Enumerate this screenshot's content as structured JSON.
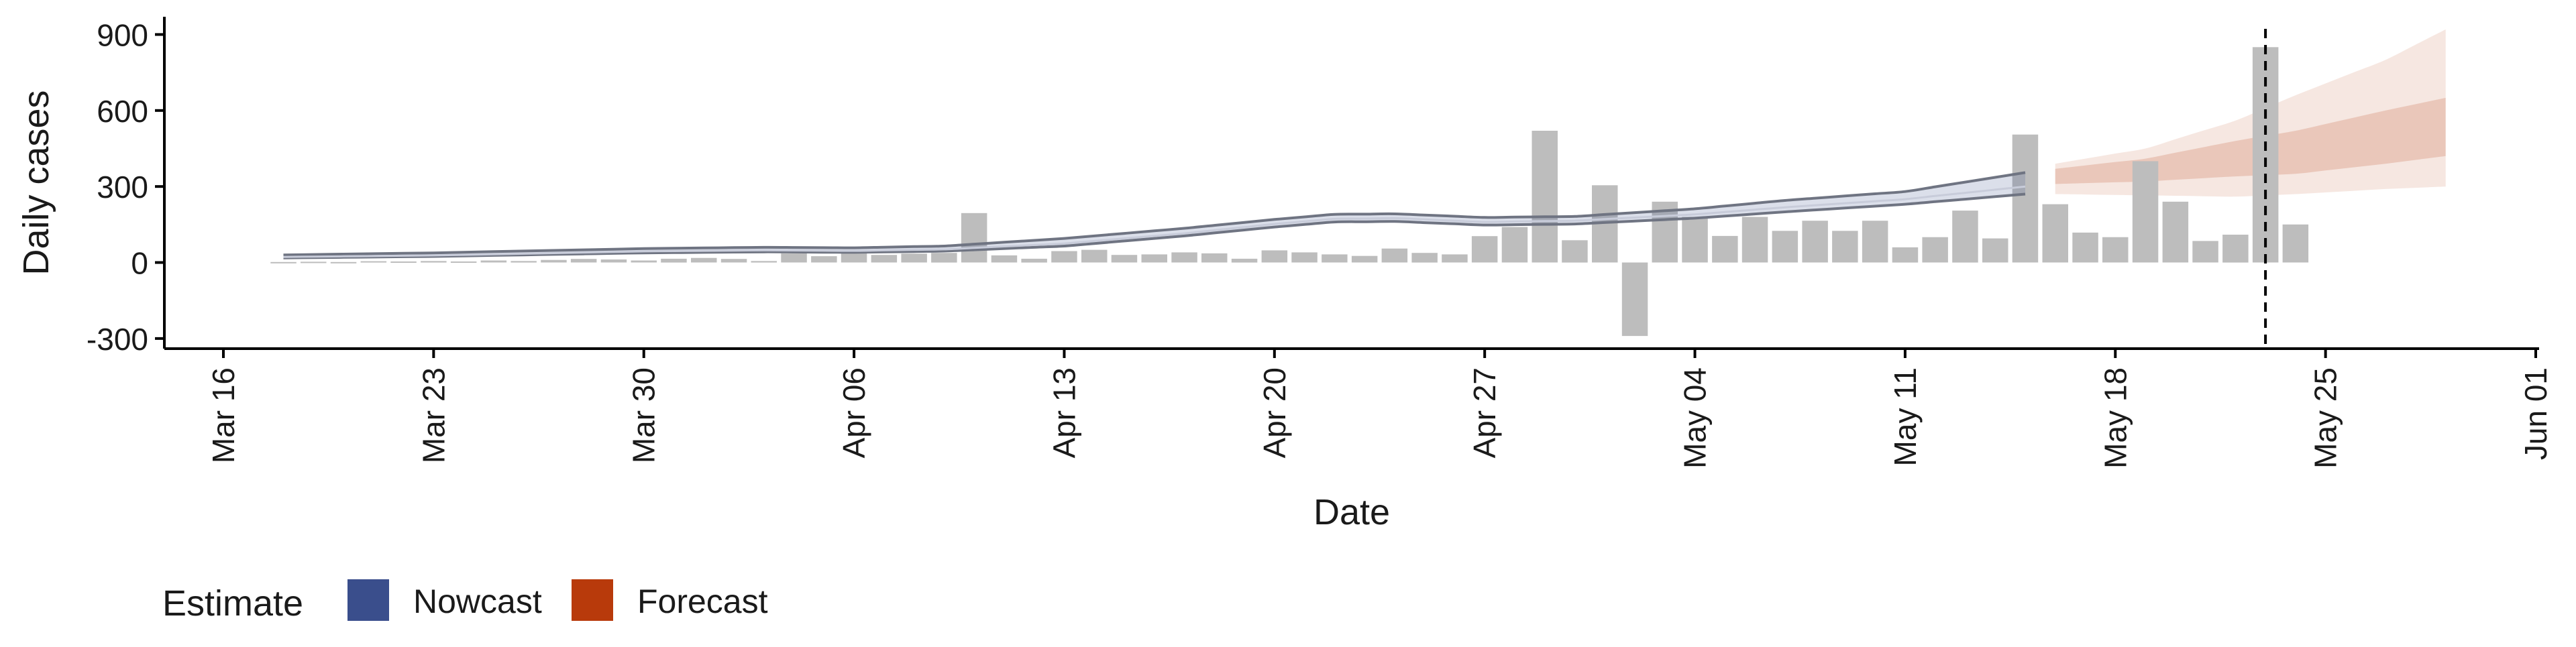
{
  "chart_data": {
    "type": "bar",
    "xlabel": "Date",
    "ylabel": "Daily cases",
    "x_tick_labels": [
      "Mar 16",
      "Mar 23",
      "Mar 30",
      "Apr 06",
      "Apr 13",
      "Apr 20",
      "Apr 27",
      "May 04",
      "May 11",
      "May 18",
      "May 25",
      "Jun 01"
    ],
    "y_tick_labels": [
      "-300",
      "0",
      "300",
      "600",
      "900"
    ],
    "y_ticks": [
      -300,
      0,
      300,
      600,
      900
    ],
    "ylim": [
      -340,
      970
    ],
    "xlim": [
      "2020-03-16",
      "2020-06-01"
    ],
    "grid": false,
    "legend": {
      "position": "bottom-left",
      "title": "Estimate",
      "items": [
        {
          "label": "Nowcast",
          "color": "#3a4e8c"
        },
        {
          "label": "Forecast",
          "color": "#b83a0b"
        }
      ]
    },
    "bars": {
      "color": "#bdbdbd",
      "start_date": "2020-03-18",
      "values": [
        2,
        3,
        2,
        5,
        4,
        6,
        4,
        8,
        6,
        10,
        14,
        12,
        8,
        15,
        18,
        14,
        6,
        36,
        25,
        45,
        30,
        35,
        38,
        195,
        28,
        15,
        45,
        50,
        30,
        32,
        40,
        36,
        15,
        48,
        40,
        32,
        26,
        55,
        38,
        32,
        104,
        140,
        520,
        88,
        305,
        -290,
        240,
        180,
        105,
        180,
        125,
        165,
        125,
        165,
        60,
        100,
        205,
        95,
        505,
        230,
        118,
        100,
        400,
        240,
        85,
        110,
        850,
        150
      ]
    },
    "nowcast": {
      "color": "#3a4e8c",
      "start_date": "2020-03-18",
      "end_date": "2020-05-15",
      "knots": [
        {
          "date": "2020-03-18",
          "lower": 18,
          "median": 22,
          "upper": 30
        },
        {
          "date": "2020-03-23",
          "lower": 24,
          "median": 28,
          "upper": 38
        },
        {
          "date": "2020-03-30",
          "lower": 38,
          "median": 44,
          "upper": 55
        },
        {
          "date": "2020-04-03",
          "lower": 42,
          "median": 48,
          "upper": 60
        },
        {
          "date": "2020-04-06",
          "lower": 40,
          "median": 46,
          "upper": 58
        },
        {
          "date": "2020-04-09",
          "lower": 45,
          "median": 52,
          "upper": 65
        },
        {
          "date": "2020-04-13",
          "lower": 65,
          "median": 75,
          "upper": 95
        },
        {
          "date": "2020-04-17",
          "lower": 105,
          "median": 115,
          "upper": 135
        },
        {
          "date": "2020-04-20",
          "lower": 140,
          "median": 152,
          "upper": 170
        },
        {
          "date": "2020-04-22",
          "lower": 160,
          "median": 172,
          "upper": 190
        },
        {
          "date": "2020-04-24",
          "lower": 162,
          "median": 175,
          "upper": 192
        },
        {
          "date": "2020-04-27",
          "lower": 148,
          "median": 160,
          "upper": 178
        },
        {
          "date": "2020-04-30",
          "lower": 152,
          "median": 165,
          "upper": 182
        },
        {
          "date": "2020-05-04",
          "lower": 175,
          "median": 190,
          "upper": 212
        },
        {
          "date": "2020-05-07",
          "lower": 200,
          "median": 218,
          "upper": 245
        },
        {
          "date": "2020-05-11",
          "lower": 230,
          "median": 250,
          "upper": 280
        },
        {
          "date": "2020-05-15",
          "lower": 270,
          "median": 300,
          "upper": 355
        }
      ]
    },
    "forecast": {
      "color": "#b83a0b",
      "start_date": "2020-05-16",
      "end_date": "2020-05-29",
      "knots": [
        {
          "date": "2020-05-16",
          "lower90": 270,
          "lower50": 310,
          "median": 340,
          "upper50": 370,
          "upper90": 390
        },
        {
          "date": "2020-05-19",
          "lower90": 265,
          "lower50": 320,
          "median": 360,
          "upper50": 410,
          "upper90": 450
        },
        {
          "date": "2020-05-22",
          "lower90": 260,
          "lower50": 340,
          "median": 400,
          "upper50": 480,
          "upper90": 560
        },
        {
          "date": "2020-05-24",
          "lower90": 270,
          "lower50": 350,
          "median": 430,
          "upper50": 520,
          "upper90": 660
        },
        {
          "date": "2020-05-27",
          "lower90": 290,
          "lower50": 390,
          "median": 480,
          "upper50": 600,
          "upper90": 800
        },
        {
          "date": "2020-05-29",
          "lower90": 300,
          "lower50": 420,
          "median": 520,
          "upper50": 650,
          "upper90": 920
        }
      ]
    },
    "vline": {
      "date": "2020-05-23",
      "style": "dashed"
    }
  }
}
